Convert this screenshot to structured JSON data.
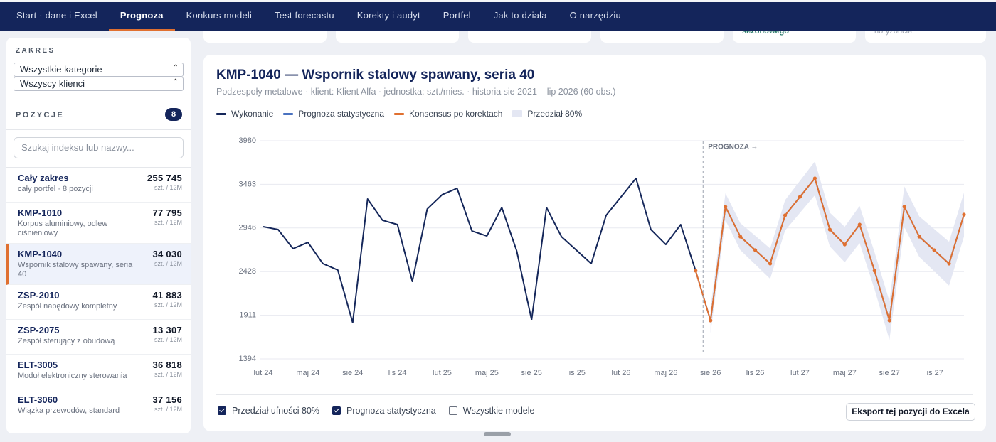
{
  "nav": {
    "items": [
      "Start · dane i Excel",
      "Prognoza",
      "Konkurs modeli",
      "Test forecastu",
      "Korekty i audyt",
      "Portfel",
      "Jak to działa",
      "O narzędziu"
    ],
    "active": 1
  },
  "top_cards": {
    "texts": [
      "sezonowego",
      "horyzoncie"
    ]
  },
  "sidebar": {
    "scope_label": "ZAKRES",
    "selects": [
      "Wszystkie kategorie",
      "Wszyscy klienci"
    ],
    "positions_label": "POZYCJE",
    "count": "8",
    "search_placeholder": "Szukaj indeksu lub nazwy...",
    "selected": 2,
    "items": [
      {
        "code": "Cały zakres",
        "desc": "cały portfel · 8 pozycji",
        "value": "255 745",
        "unit": "szt. / 12M"
      },
      {
        "code": "KMP-1010",
        "desc": "Korpus aluminiowy, odlew ciśnieniowy",
        "value": "77 795",
        "unit": "szt. / 12M"
      },
      {
        "code": "KMP-1040",
        "desc": "Wspornik stalowy spawany, seria 40",
        "value": "34 030",
        "unit": "szt. / 12M"
      },
      {
        "code": "ZSP-2010",
        "desc": "Zespół napędowy kompletny",
        "value": "41 883",
        "unit": "szt. / 12M"
      },
      {
        "code": "ZSP-2075",
        "desc": "Zespół sterujący z obudową",
        "value": "13 307",
        "unit": "szt. / 12M"
      },
      {
        "code": "ELT-3005",
        "desc": "Moduł elektroniczny sterowania",
        "value": "36 818",
        "unit": "szt. / 12M"
      },
      {
        "code": "ELT-3060",
        "desc": "Wiązka przewodów, standard",
        "value": "37 156",
        "unit": "szt. / 12M"
      }
    ]
  },
  "chart_data": {
    "type": "line",
    "title": "KMP-1040 — Wspornik stalowy spawany, seria 40",
    "subtitle": "Podzespoły metalowe · klient: Klient Alfa · jednostka: szt./mies. · historia sie 2021 – lip 2026 (60 obs.)",
    "annotation": "PROGNOZA →",
    "categories": [
      "lut 24",
      null,
      null,
      "maj 24",
      null,
      null,
      "sie 24",
      null,
      null,
      "lis 24",
      null,
      null,
      "lut 25",
      null,
      null,
      "maj 25",
      null,
      null,
      "sie 25",
      null,
      null,
      "lis 25",
      null,
      null,
      "lut 26",
      null,
      null,
      "maj 26",
      null,
      null,
      "sie 26",
      null,
      null,
      "lis 26",
      null,
      null,
      "lut 27",
      null,
      null,
      "maj 27",
      null,
      null,
      "sie 27",
      null,
      null,
      "lis 27",
      null,
      null
    ],
    "ylim": [
      1394,
      3980
    ],
    "yticks": [
      1394,
      1911,
      2428,
      2946,
      3463,
      3980
    ],
    "grid": true,
    "series": [
      {
        "name": "Wykonanie",
        "color": "#15275a",
        "values": [
          2961,
          2927,
          2700,
          2775,
          2523,
          2447,
          1824,
          3289,
          3037,
          2986,
          2312,
          3171,
          3340,
          3416,
          2910,
          2851,
          3188,
          2674,
          1857,
          3188,
          2843,
          2683,
          2523,
          3096,
          3315,
          3534,
          2927,
          2750,
          2986,
          2439,
          null,
          null,
          null,
          null,
          null,
          null,
          null,
          null,
          null,
          null,
          null,
          null,
          null,
          null,
          null,
          null,
          null,
          null
        ]
      },
      {
        "name": "Prognoza statystyczna",
        "color": "#4a72c0",
        "values": [
          null,
          null,
          null,
          null,
          null,
          null,
          null,
          null,
          null,
          null,
          null,
          null,
          null,
          null,
          null,
          null,
          null,
          null,
          null,
          null,
          null,
          null,
          null,
          null,
          null,
          null,
          null,
          null,
          null,
          2439,
          1849,
          3197,
          2843,
          2683,
          2523,
          3096,
          3315,
          3534,
          2927,
          2750,
          2986,
          2439,
          1849,
          3197,
          2843,
          2683,
          2523,
          3104
        ]
      },
      {
        "name": "Konsensus po korektach",
        "color": "#e07030",
        "markers": true,
        "values": [
          null,
          null,
          null,
          null,
          null,
          null,
          null,
          null,
          null,
          null,
          null,
          null,
          null,
          null,
          null,
          null,
          null,
          null,
          null,
          null,
          null,
          null,
          null,
          null,
          null,
          null,
          null,
          null,
          null,
          2439,
          1849,
          3197,
          2843,
          2683,
          2523,
          3096,
          3315,
          3534,
          2927,
          2750,
          2986,
          2439,
          1849,
          3197,
          2843,
          2683,
          2523,
          3104
        ]
      },
      {
        "name": "Przedział 80%",
        "color": "#e4e7f3",
        "lower": [
          null,
          null,
          null,
          null,
          null,
          null,
          null,
          null,
          null,
          null,
          null,
          null,
          null,
          null,
          null,
          null,
          null,
          null,
          null,
          null,
          null,
          null,
          null,
          null,
          null,
          null,
          null,
          null,
          null,
          null,
          1699,
          3037,
          2683,
          2513,
          2343,
          2916,
          3125,
          3334,
          2727,
          2540,
          2766,
          2219,
          1619,
          2957,
          2603,
          2433,
          2263,
          2844
        ],
        "upper": [
          null,
          null,
          null,
          null,
          null,
          null,
          null,
          null,
          null,
          null,
          null,
          null,
          null,
          null,
          null,
          null,
          null,
          null,
          null,
          null,
          null,
          null,
          null,
          null,
          null,
          null,
          null,
          null,
          null,
          null,
          1999,
          3357,
          3003,
          2853,
          2703,
          3276,
          3505,
          3734,
          3127,
          2960,
          3206,
          2659,
          2079,
          3437,
          3083,
          2933,
          2783,
          3364
        ]
      }
    ]
  },
  "controls": {
    "checkboxes": [
      {
        "label": "Przedział ufności 80%",
        "checked": true
      },
      {
        "label": "Prognoza statystyczna",
        "checked": true
      },
      {
        "label": "Wszystkie modele",
        "checked": false
      }
    ],
    "export_button": "Eksport tej pozycji do Excela"
  }
}
